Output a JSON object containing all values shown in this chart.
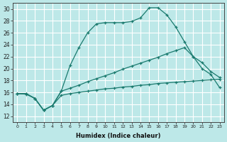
{
  "xlabel": "Humidex (Indice chaleur)",
  "ylabel": "",
  "background_color": "#bde8e8",
  "grid_color": "#ffffff",
  "line_color": "#1a7a6e",
  "xlim": [
    -0.5,
    23.5
  ],
  "ylim": [
    11.0,
    31.0
  ],
  "yticks": [
    12,
    14,
    16,
    18,
    20,
    22,
    24,
    26,
    28,
    30
  ],
  "xticks": [
    0,
    1,
    2,
    3,
    4,
    5,
    6,
    7,
    8,
    9,
    10,
    11,
    12,
    13,
    14,
    15,
    16,
    17,
    18,
    19,
    20,
    21,
    22,
    23
  ],
  "line1_x": [
    0,
    1,
    2,
    3,
    4,
    5,
    6,
    7,
    8,
    9,
    10,
    11,
    12,
    13,
    14,
    15,
    16,
    17,
    18,
    19,
    20,
    21,
    22,
    23
  ],
  "line1_y": [
    15.8,
    15.7,
    15.0,
    13.0,
    13.8,
    16.2,
    20.5,
    23.5,
    26.0,
    27.5,
    27.7,
    27.7,
    27.7,
    27.9,
    28.5,
    30.2,
    30.2,
    29.0,
    27.0,
    24.5,
    22.0,
    20.0,
    19.0,
    16.8
  ],
  "line2_x": [
    0,
    1,
    2,
    3,
    4,
    5,
    6,
    7,
    8,
    9,
    10,
    11,
    12,
    13,
    14,
    15,
    16,
    17,
    18,
    19,
    20,
    21,
    22,
    23
  ],
  "line2_y": [
    15.8,
    15.8,
    15.0,
    13.0,
    13.8,
    16.2,
    16.7,
    17.2,
    17.8,
    18.3,
    18.8,
    19.3,
    19.9,
    20.4,
    20.9,
    21.4,
    21.9,
    22.5,
    23.0,
    23.5,
    22.0,
    21.0,
    19.5,
    18.5
  ],
  "line3_x": [
    0,
    1,
    2,
    3,
    4,
    5,
    6,
    7,
    8,
    9,
    10,
    11,
    12,
    13,
    14,
    15,
    16,
    17,
    18,
    19,
    20,
    21,
    22,
    23
  ],
  "line3_y": [
    15.8,
    15.8,
    15.0,
    13.0,
    13.8,
    15.5,
    15.8,
    16.0,
    16.2,
    16.4,
    16.6,
    16.7,
    16.9,
    17.0,
    17.2,
    17.3,
    17.5,
    17.6,
    17.7,
    17.8,
    17.9,
    18.0,
    18.1,
    18.2
  ]
}
